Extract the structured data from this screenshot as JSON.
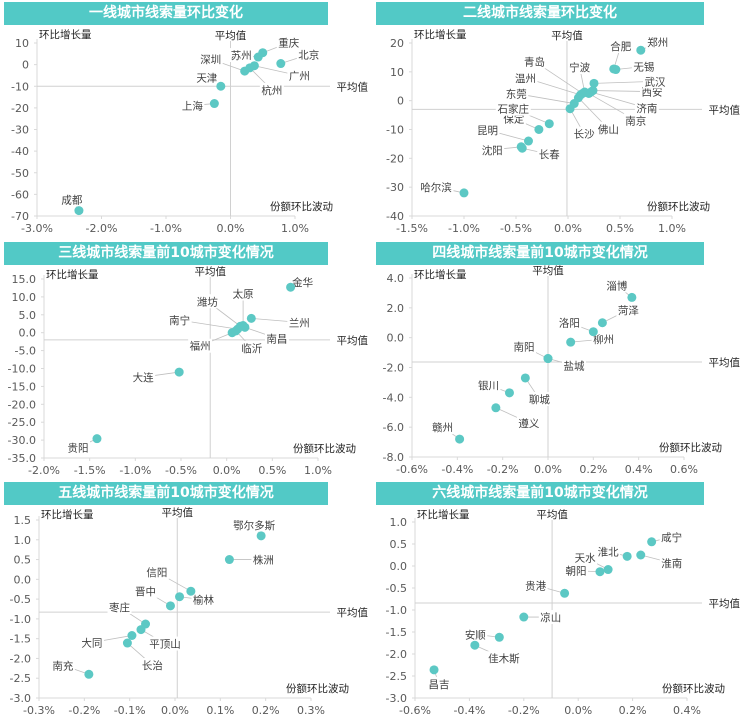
{
  "colors": {
    "accent": "#52c9c6",
    "point": "#5cc8c4",
    "axis": "#d9d9d9",
    "text": "#404040"
  },
  "chart_data": [
    {
      "type": "scatter",
      "title": "一线城市线索量环比变化",
      "xlabel": "份额环比波动",
      "ylabel": "环比增长量",
      "avg_label_x": "平均值",
      "avg_label_y": "平均值",
      "avg_x": 0.0,
      "avg_y": -10,
      "xlim": [
        -3.0,
        1.0
      ],
      "ylim": [
        -70,
        10
      ],
      "x_ticks": [
        "-3.0%",
        "-2.0%",
        "-1.0%",
        "0.0%",
        "1.0%"
      ],
      "y_ticks": [
        "10",
        "0",
        "-10",
        "-20",
        "-30",
        "-40",
        "-50",
        "-60",
        "-70"
      ],
      "points": [
        {
          "name": "成都",
          "x": -2.35,
          "y": -67.5
        },
        {
          "name": "上海",
          "x": -0.25,
          "y": -18
        },
        {
          "name": "天津",
          "x": -0.15,
          "y": -10
        },
        {
          "name": "深圳",
          "x": 0.22,
          "y": -3
        },
        {
          "name": "杭州",
          "x": 0.3,
          "y": -1.5
        },
        {
          "name": "广州",
          "x": 0.37,
          "y": -0.5
        },
        {
          "name": "苏州",
          "x": 0.43,
          "y": 3.5
        },
        {
          "name": "重庆",
          "x": 0.5,
          "y": 5.5
        },
        {
          "name": "北京",
          "x": 0.78,
          "y": 0.5
        }
      ]
    },
    {
      "type": "scatter",
      "title": "二线城市线索量环比变化",
      "xlabel": "份额环比波动",
      "ylabel": "环比增长量",
      "avg_label_x": "平均值",
      "avg_label_y": "平均值",
      "avg_x": -0.01,
      "avg_y": -3,
      "xlim": [
        -1.5,
        1.0
      ],
      "ylim": [
        -40,
        20
      ],
      "x_ticks": [
        "-1.5%",
        "-1.0%",
        "-0.5%",
        "0.0%",
        "0.5%",
        "1.0%"
      ],
      "y_ticks": [
        "20",
        "10",
        "0",
        "-10",
        "-20",
        "-30",
        "-40"
      ],
      "points": [
        {
          "name": "哈尔滨",
          "x": -1.0,
          "y": -32
        },
        {
          "name": "沈阳",
          "x": -0.45,
          "y": -16
        },
        {
          "name": "长春",
          "x": -0.44,
          "y": -16.5
        },
        {
          "name": "昆明",
          "x": -0.38,
          "y": -14
        },
        {
          "name": "保定",
          "x": -0.28,
          "y": -10
        },
        {
          "name": "石家庄",
          "x": -0.18,
          "y": -8
        },
        {
          "name": "长沙",
          "x": 0.02,
          "y": -2.8
        },
        {
          "name": "东莞",
          "x": 0.06,
          "y": -1
        },
        {
          "name": "佛山",
          "x": 0.1,
          "y": 1
        },
        {
          "name": "温州",
          "x": 0.12,
          "y": 2
        },
        {
          "name": "青岛",
          "x": 0.14,
          "y": 2.5
        },
        {
          "name": "宁波",
          "x": 0.16,
          "y": 3
        },
        {
          "name": "南京",
          "x": 0.2,
          "y": 2.5
        },
        {
          "name": "济南",
          "x": 0.22,
          "y": 3
        },
        {
          "name": "西安",
          "x": 0.24,
          "y": 3.5
        },
        {
          "name": "武汉",
          "x": 0.25,
          "y": 6
        },
        {
          "name": "无锡",
          "x": 0.46,
          "y": 10.8
        },
        {
          "name": "合肥",
          "x": 0.44,
          "y": 11
        },
        {
          "name": "郑州",
          "x": 0.7,
          "y": 17.5
        }
      ]
    },
    {
      "type": "scatter",
      "title": "三线城市线索量前10城市变化情况",
      "xlabel": "份额环比波动",
      "ylabel": "环比增长量",
      "avg_label_x": "平均值",
      "avg_label_y": "平均值",
      "avg_x": -0.18,
      "avg_y": -2.0,
      "xlim": [
        -2.0,
        1.0
      ],
      "ylim": [
        -35,
        15
      ],
      "x_ticks": [
        "-2.0%",
        "-1.5%",
        "-1.0%",
        "-0.5%",
        "0.0%",
        "0.5%",
        "1.0%"
      ],
      "y_ticks": [
        "15.0",
        "10.0",
        "5.0",
        "0.0",
        "-5.0",
        "-10.0",
        "-15.0",
        "-20.0",
        "-25.0",
        "-30.0",
        "-35.0"
      ],
      "points": [
        {
          "name": "金华",
          "x": 0.7,
          "y": 12.7
        },
        {
          "name": "兰州",
          "x": 0.27,
          "y": 4
        },
        {
          "name": "太原",
          "x": 0.18,
          "y": 2
        },
        {
          "name": "潍坊",
          "x": 0.15,
          "y": 1.8
        },
        {
          "name": "南宁",
          "x": 0.12,
          "y": 1
        },
        {
          "name": "南昌",
          "x": 0.2,
          "y": 1.5
        },
        {
          "name": "临沂",
          "x": 0.1,
          "y": 0.5
        },
        {
          "name": "福州",
          "x": 0.06,
          "y": 0
        },
        {
          "name": "大连",
          "x": -0.52,
          "y": -11
        },
        {
          "name": "贵阳",
          "x": -1.42,
          "y": -29.6
        }
      ]
    },
    {
      "type": "scatter",
      "title": "四线城市线索量前10城市变化情况",
      "xlabel": "份额环比波动",
      "ylabel": "环比增长量",
      "avg_label_x": "平均值",
      "avg_label_y": "平均值",
      "avg_x": 0.0,
      "avg_y": -1.63,
      "xlim": [
        -0.6,
        0.6
      ],
      "ylim": [
        -8,
        4
      ],
      "x_ticks": [
        "-0.6%",
        "-0.4%",
        "-0.2%",
        "0.0%",
        "0.2%",
        "0.4%",
        "0.6%"
      ],
      "y_ticks": [
        "4.0",
        "2.0",
        "0.0",
        "-2.0",
        "-4.0",
        "-6.0",
        "-8.0"
      ],
      "points": [
        {
          "name": "淄博",
          "x": 0.37,
          "y": 2.7
        },
        {
          "name": "菏泽",
          "x": 0.24,
          "y": 1.0
        },
        {
          "name": "洛阳",
          "x": 0.2,
          "y": 0.4
        },
        {
          "name": "柳州",
          "x": 0.1,
          "y": -0.3
        },
        {
          "name": "南阳",
          "x": 0.0,
          "y": -1.4
        },
        {
          "name": "盐城",
          "x": 0.0,
          "y": -1.4
        },
        {
          "name": "聊城",
          "x": -0.1,
          "y": -2.7
        },
        {
          "name": "银川",
          "x": -0.17,
          "y": -3.7
        },
        {
          "name": "遵义",
          "x": -0.23,
          "y": -4.7
        },
        {
          "name": "赣州",
          "x": -0.39,
          "y": -6.8
        }
      ]
    },
    {
      "type": "scatter",
      "title": "五线城市线索量前10城市变化情况",
      "xlabel": "份额环比波动",
      "ylabel": "环比增长量",
      "avg_label_x": "平均值",
      "avg_label_y": "平均值",
      "avg_x": 0.005,
      "avg_y": -0.83,
      "xlim": [
        -0.3,
        0.3
      ],
      "ylim": [
        -3.0,
        1.5
      ],
      "x_ticks": [
        "-0.3%",
        "-0.2%",
        "-0.1%",
        "0.0%",
        "0.1%",
        "0.2%",
        "0.3%"
      ],
      "y_ticks": [
        "1.5",
        "1.0",
        "0.5",
        "0.0",
        "-0.5",
        "-1.0",
        "-1.5",
        "-2.0",
        "-2.5",
        "-3.0"
      ],
      "points": [
        {
          "name": "鄂尔多斯",
          "x": 0.19,
          "y": 1.1
        },
        {
          "name": "株洲",
          "x": 0.12,
          "y": 0.5
        },
        {
          "name": "信阳",
          "x": 0.035,
          "y": -0.3
        },
        {
          "name": "榆林",
          "x": 0.01,
          "y": -0.44
        },
        {
          "name": "晋中",
          "x": -0.01,
          "y": -0.67
        },
        {
          "name": "枣庄",
          "x": -0.065,
          "y": -1.13
        },
        {
          "name": "平顶山",
          "x": -0.075,
          "y": -1.27
        },
        {
          "name": "大同",
          "x": -0.095,
          "y": -1.42
        },
        {
          "name": "长治",
          "x": -0.105,
          "y": -1.61
        },
        {
          "name": "南充",
          "x": -0.19,
          "y": -2.4
        }
      ]
    },
    {
      "type": "scatter",
      "title": "六线城市线索量前10城市变化情况",
      "xlabel": "份额环比波动",
      "ylabel": "环比增长量",
      "avg_label_x": "平均值",
      "avg_label_y": "平均值",
      "avg_x": -0.096,
      "avg_y": -0.84,
      "xlim": [
        -0.6,
        0.4
      ],
      "ylim": [
        -3.0,
        1.0
      ],
      "x_ticks": [
        "-0.6%",
        "-0.4%",
        "-0.2%",
        "0.0%",
        "0.2%",
        "0.4%"
      ],
      "y_ticks": [
        "1.0",
        "0.5",
        "0.0",
        "-0.5",
        "-1.0",
        "-1.5",
        "-2.0",
        "-2.5",
        "-3.0"
      ],
      "points": [
        {
          "name": "咸宁",
          "x": 0.27,
          "y": 0.55
        },
        {
          "name": "淮南",
          "x": 0.23,
          "y": 0.25
        },
        {
          "name": "淮北",
          "x": 0.18,
          "y": 0.22
        },
        {
          "name": "天水",
          "x": 0.11,
          "y": -0.08
        },
        {
          "name": "朝阳",
          "x": 0.08,
          "y": -0.13
        },
        {
          "name": "贵港",
          "x": -0.05,
          "y": -0.62
        },
        {
          "name": "凉山",
          "x": -0.2,
          "y": -1.16
        },
        {
          "name": "安顺",
          "x": -0.29,
          "y": -1.62
        },
        {
          "name": "佳木斯",
          "x": -0.38,
          "y": -1.8
        },
        {
          "name": "昌吉",
          "x": -0.53,
          "y": -2.36
        }
      ]
    }
  ]
}
